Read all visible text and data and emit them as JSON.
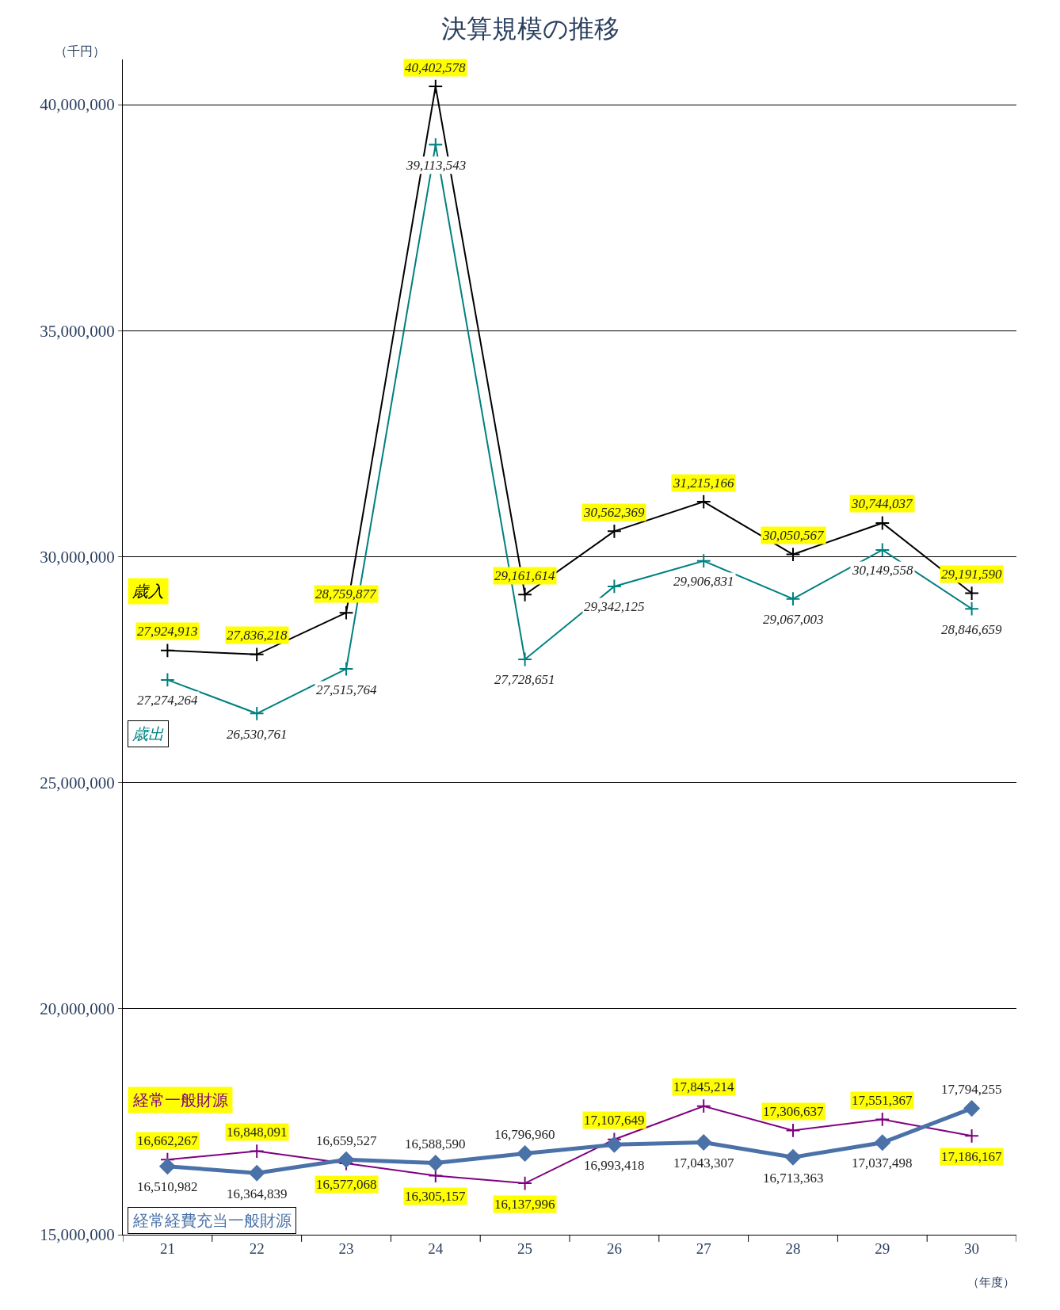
{
  "chart_data": {
    "type": "line",
    "title": "決算規模の推移",
    "ylabel": "（千円）",
    "xlabel": "（年度）",
    "categories": [
      "21",
      "22",
      "23",
      "24",
      "25",
      "26",
      "27",
      "28",
      "29",
      "30"
    ],
    "series": [
      {
        "name": "歳入",
        "color": "#000000",
        "marker": "cross",
        "values": [
          27924913,
          27836218,
          28759877,
          40402578,
          29161614,
          30562369,
          31215166,
          30050567,
          30744037,
          29191590
        ],
        "value_labels": [
          "27,924,913",
          "27,836,218",
          "28,759,877",
          "40,402,578",
          "29,161,614",
          "30,562,369",
          "31,215,166",
          "30,050,567",
          "30,744,037",
          "29,191,590"
        ]
      },
      {
        "name": "歳出",
        "color": "#008080",
        "marker": "cross",
        "values": [
          27274264,
          26530761,
          27515764,
          39113543,
          27728651,
          29342125,
          29906831,
          29067003,
          30149558,
          28846659
        ],
        "value_labels": [
          "27,274,264",
          "26,530,761",
          "27,515,764",
          "39,113,543",
          "27,728,651",
          "29,342,125",
          "29,906,831",
          "29,067,003",
          "30,149,558",
          "28,846,659"
        ]
      },
      {
        "name": "経常一般財源",
        "color": "#800080",
        "marker": "cross",
        "values": [
          16662267,
          16848091,
          16577068,
          16305157,
          16137996,
          17107649,
          17845214,
          17306637,
          17551367,
          17186167
        ],
        "value_labels": [
          "16,662,267",
          "16,848,091",
          "16,577,068",
          "16,305,157",
          "16,137,996",
          "17,107,649",
          "17,845,214",
          "17,306,637",
          "17,551,367",
          "17,186,167"
        ]
      },
      {
        "name": "経常経費充当一般財源",
        "color": "#4a72a8",
        "marker": "diamond",
        "values": [
          16510982,
          16364839,
          16659527,
          16588590,
          16796960,
          16993418,
          17043307,
          16713363,
          17037498,
          17794255
        ],
        "value_labels": [
          "16,510,982",
          "16,364,839",
          "16,659,527",
          "16,588,590",
          "16,796,960",
          "16,993,418",
          "17,043,307",
          "16,713,363",
          "17,037,498",
          "17,794,255"
        ]
      }
    ],
    "ylim": [
      15000000,
      41000000
    ],
    "yticks": [
      {
        "value": 15000000,
        "label": "15,000,000"
      },
      {
        "value": 20000000,
        "label": "20,000,000"
      },
      {
        "value": 25000000,
        "label": "25,000,000"
      },
      {
        "value": 30000000,
        "label": "30,000,000"
      },
      {
        "value": 35000000,
        "label": "35,000,000"
      },
      {
        "value": 40000000,
        "label": "40,000,000"
      }
    ],
    "grid": "y",
    "line_style": "solid"
  }
}
